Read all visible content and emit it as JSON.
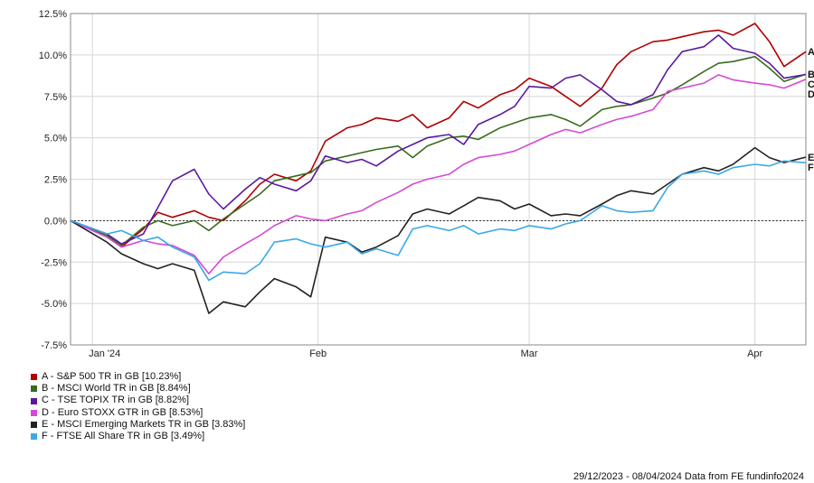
{
  "chart_data": {
    "type": "line",
    "title": "",
    "xlabel": "",
    "ylabel": "",
    "ylim": [
      -7.5,
      12.5
    ],
    "y_ticks": [
      "12.5%",
      "10.0%",
      "7.5%",
      "5.0%",
      "2.5%",
      "0.0%",
      "-2.5%",
      "-5.0%",
      "-7.5%"
    ],
    "y_tick_values": [
      12.5,
      10.0,
      7.5,
      5.0,
      2.5,
      0.0,
      -2.5,
      -5.0,
      -7.5
    ],
    "x_ticks": [
      "Jan '24",
      "Feb",
      "Mar",
      "Apr"
    ],
    "x_tick_dates": [
      "2024-01-01",
      "2024-02-01",
      "2024-03-01",
      "2024-04-01"
    ],
    "x_range": [
      "2023-12-29",
      "2024-04-08"
    ],
    "grid": true,
    "legend_position": "bottom-left",
    "series": [
      {
        "name": "A - S&P 500 TR in GB [10.23%]",
        "end_label": "A",
        "color": "#b00000",
        "x": [
          "2023-12-29",
          "2024-01-03",
          "2024-01-05",
          "2024-01-08",
          "2024-01-10",
          "2024-01-12",
          "2024-01-15",
          "2024-01-17",
          "2024-01-19",
          "2024-01-22",
          "2024-01-24",
          "2024-01-26",
          "2024-01-29",
          "2024-01-31",
          "2024-02-02",
          "2024-02-05",
          "2024-02-07",
          "2024-02-09",
          "2024-02-12",
          "2024-02-14",
          "2024-02-16",
          "2024-02-19",
          "2024-02-21",
          "2024-02-23",
          "2024-02-26",
          "2024-02-28",
          "2024-03-01",
          "2024-03-04",
          "2024-03-06",
          "2024-03-08",
          "2024-03-11",
          "2024-03-13",
          "2024-03-15",
          "2024-03-18",
          "2024-03-20",
          "2024-03-22",
          "2024-03-25",
          "2024-03-27",
          "2024-03-29",
          "2024-04-01",
          "2024-04-03",
          "2024-04-05",
          "2024-04-08"
        ],
        "values": [
          0.0,
          -0.8,
          -1.6,
          -0.5,
          0.5,
          0.2,
          0.6,
          0.2,
          0.0,
          1.2,
          2.2,
          2.8,
          2.4,
          3.0,
          4.8,
          5.6,
          5.8,
          6.2,
          6.0,
          6.4,
          5.6,
          6.2,
          7.2,
          6.8,
          7.6,
          7.9,
          8.6,
          8.1,
          7.5,
          6.9,
          8.0,
          9.4,
          10.2,
          10.8,
          10.9,
          11.1,
          11.4,
          11.5,
          11.2,
          11.9,
          10.8,
          9.3,
          10.2
        ]
      },
      {
        "name": "B - MSCI World TR in GB [8.84%]",
        "end_label": "B",
        "color": "#3a6b1e",
        "x": [
          "2023-12-29",
          "2024-01-03",
          "2024-01-05",
          "2024-01-08",
          "2024-01-10",
          "2024-01-12",
          "2024-01-15",
          "2024-01-17",
          "2024-01-19",
          "2024-01-22",
          "2024-01-24",
          "2024-01-26",
          "2024-01-29",
          "2024-01-31",
          "2024-02-02",
          "2024-02-05",
          "2024-02-07",
          "2024-02-09",
          "2024-02-12",
          "2024-02-14",
          "2024-02-16",
          "2024-02-19",
          "2024-02-21",
          "2024-02-23",
          "2024-02-26",
          "2024-02-28",
          "2024-03-01",
          "2024-03-04",
          "2024-03-06",
          "2024-03-08",
          "2024-03-11",
          "2024-03-13",
          "2024-03-15",
          "2024-03-18",
          "2024-03-20",
          "2024-03-22",
          "2024-03-25",
          "2024-03-27",
          "2024-03-29",
          "2024-04-01",
          "2024-04-03",
          "2024-04-05",
          "2024-04-08"
        ],
        "values": [
          0.0,
          -0.9,
          -1.5,
          -0.4,
          0.0,
          -0.3,
          0.0,
          -0.6,
          0.1,
          1.0,
          1.6,
          2.4,
          2.7,
          2.9,
          3.6,
          3.9,
          4.1,
          4.3,
          4.5,
          3.8,
          4.5,
          5.0,
          5.1,
          4.9,
          5.6,
          5.9,
          6.2,
          6.4,
          6.1,
          5.7,
          6.7,
          6.9,
          7.0,
          7.4,
          7.7,
          8.2,
          9.0,
          9.5,
          9.6,
          9.9,
          9.2,
          8.4,
          8.84
        ]
      },
      {
        "name": "C - TSE TOPIX TR in GB [8.82%]",
        "end_label": "C",
        "color": "#5a1aa0",
        "x": [
          "2023-12-29",
          "2024-01-03",
          "2024-01-05",
          "2024-01-08",
          "2024-01-10",
          "2024-01-12",
          "2024-01-15",
          "2024-01-17",
          "2024-01-19",
          "2024-01-22",
          "2024-01-24",
          "2024-01-26",
          "2024-01-29",
          "2024-01-31",
          "2024-02-02",
          "2024-02-05",
          "2024-02-07",
          "2024-02-09",
          "2024-02-12",
          "2024-02-14",
          "2024-02-16",
          "2024-02-19",
          "2024-02-21",
          "2024-02-23",
          "2024-02-26",
          "2024-02-28",
          "2024-03-01",
          "2024-03-04",
          "2024-03-06",
          "2024-03-08",
          "2024-03-11",
          "2024-03-13",
          "2024-03-15",
          "2024-03-18",
          "2024-03-20",
          "2024-03-22",
          "2024-03-25",
          "2024-03-27",
          "2024-03-29",
          "2024-04-01",
          "2024-04-03",
          "2024-04-05",
          "2024-04-08"
        ],
        "values": [
          0.0,
          -0.8,
          -1.4,
          -0.8,
          0.8,
          2.4,
          3.1,
          1.6,
          0.7,
          1.9,
          2.6,
          2.2,
          1.8,
          2.4,
          3.9,
          3.5,
          3.7,
          3.3,
          4.2,
          4.6,
          5.0,
          5.2,
          4.6,
          5.8,
          6.4,
          6.9,
          8.1,
          8.0,
          8.6,
          8.8,
          7.9,
          7.2,
          7.0,
          7.6,
          9.1,
          10.2,
          10.5,
          11.2,
          10.4,
          10.1,
          9.5,
          8.6,
          8.82
        ]
      },
      {
        "name": "D - Euro STOXX GTR in GB [8.53%]",
        "end_label": "D",
        "color": "#d44ad4",
        "x": [
          "2023-12-29",
          "2024-01-03",
          "2024-01-05",
          "2024-01-08",
          "2024-01-10",
          "2024-01-12",
          "2024-01-15",
          "2024-01-17",
          "2024-01-19",
          "2024-01-22",
          "2024-01-24",
          "2024-01-26",
          "2024-01-29",
          "2024-01-31",
          "2024-02-02",
          "2024-02-05",
          "2024-02-07",
          "2024-02-09",
          "2024-02-12",
          "2024-02-14",
          "2024-02-16",
          "2024-02-19",
          "2024-02-21",
          "2024-02-23",
          "2024-02-26",
          "2024-02-28",
          "2024-03-01",
          "2024-03-04",
          "2024-03-06",
          "2024-03-08",
          "2024-03-11",
          "2024-03-13",
          "2024-03-15",
          "2024-03-18",
          "2024-03-20",
          "2024-03-22",
          "2024-03-25",
          "2024-03-27",
          "2024-03-29",
          "2024-04-01",
          "2024-04-03",
          "2024-04-05",
          "2024-04-08"
        ],
        "values": [
          0.0,
          -1.0,
          -1.6,
          -1.2,
          -1.4,
          -1.5,
          -2.1,
          -3.2,
          -2.2,
          -1.4,
          -0.9,
          -0.3,
          0.3,
          0.1,
          0.0,
          0.4,
          0.6,
          1.1,
          1.7,
          2.2,
          2.5,
          2.8,
          3.4,
          3.8,
          4.0,
          4.2,
          4.6,
          5.2,
          5.5,
          5.3,
          5.8,
          6.1,
          6.3,
          6.7,
          7.8,
          8.0,
          8.3,
          8.8,
          8.5,
          8.3,
          8.2,
          8.0,
          8.53
        ]
      },
      {
        "name": "E - MSCI Emerging Markets TR in GB [3.83%]",
        "end_label": "E",
        "color": "#222222",
        "x": [
          "2023-12-29",
          "2024-01-03",
          "2024-01-05",
          "2024-01-08",
          "2024-01-10",
          "2024-01-12",
          "2024-01-15",
          "2024-01-17",
          "2024-01-19",
          "2024-01-22",
          "2024-01-24",
          "2024-01-26",
          "2024-01-29",
          "2024-01-31",
          "2024-02-02",
          "2024-02-05",
          "2024-02-07",
          "2024-02-09",
          "2024-02-12",
          "2024-02-14",
          "2024-02-16",
          "2024-02-19",
          "2024-02-21",
          "2024-02-23",
          "2024-02-26",
          "2024-02-28",
          "2024-03-01",
          "2024-03-04",
          "2024-03-06",
          "2024-03-08",
          "2024-03-11",
          "2024-03-13",
          "2024-03-15",
          "2024-03-18",
          "2024-03-20",
          "2024-03-22",
          "2024-03-25",
          "2024-03-27",
          "2024-03-29",
          "2024-04-01",
          "2024-04-03",
          "2024-04-05",
          "2024-04-08"
        ],
        "values": [
          0.0,
          -1.3,
          -2.0,
          -2.6,
          -2.9,
          -2.6,
          -3.0,
          -5.6,
          -4.9,
          -5.2,
          -4.3,
          -3.5,
          -4.0,
          -4.6,
          -1.0,
          -1.3,
          -1.9,
          -1.6,
          -0.9,
          0.4,
          0.7,
          0.4,
          0.9,
          1.4,
          1.2,
          0.7,
          1.0,
          0.3,
          0.4,
          0.3,
          1.0,
          1.5,
          1.8,
          1.6,
          2.2,
          2.8,
          3.2,
          3.0,
          3.4,
          4.4,
          3.8,
          3.5,
          3.83
        ]
      },
      {
        "name": "F - FTSE All Share TR in GB [3.49%]",
        "end_label": "F",
        "color": "#3aa8e8",
        "x": [
          "2023-12-29",
          "2024-01-03",
          "2024-01-05",
          "2024-01-08",
          "2024-01-10",
          "2024-01-12",
          "2024-01-15",
          "2024-01-17",
          "2024-01-19",
          "2024-01-22",
          "2024-01-24",
          "2024-01-26",
          "2024-01-29",
          "2024-01-31",
          "2024-02-02",
          "2024-02-05",
          "2024-02-07",
          "2024-02-09",
          "2024-02-12",
          "2024-02-14",
          "2024-02-16",
          "2024-02-19",
          "2024-02-21",
          "2024-02-23",
          "2024-02-26",
          "2024-02-28",
          "2024-03-01",
          "2024-03-04",
          "2024-03-06",
          "2024-03-08",
          "2024-03-11",
          "2024-03-13",
          "2024-03-15",
          "2024-03-18",
          "2024-03-20",
          "2024-03-22",
          "2024-03-25",
          "2024-03-27",
          "2024-03-29",
          "2024-04-01",
          "2024-04-03",
          "2024-04-05",
          "2024-04-08"
        ],
        "values": [
          0.0,
          -0.8,
          -0.6,
          -1.2,
          -1.0,
          -1.6,
          -2.2,
          -3.6,
          -3.1,
          -3.2,
          -2.6,
          -1.3,
          -1.1,
          -1.4,
          -1.6,
          -1.3,
          -2.0,
          -1.7,
          -2.1,
          -0.5,
          -0.3,
          -0.6,
          -0.3,
          -0.8,
          -0.5,
          -0.6,
          -0.3,
          -0.5,
          -0.2,
          0.0,
          0.9,
          0.6,
          0.5,
          0.6,
          2.0,
          2.8,
          3.0,
          2.8,
          3.2,
          3.4,
          3.3,
          3.6,
          3.49
        ]
      }
    ]
  },
  "footer": {
    "text": "29/12/2023 - 08/04/2024 Data from FE fundinfo2024"
  }
}
